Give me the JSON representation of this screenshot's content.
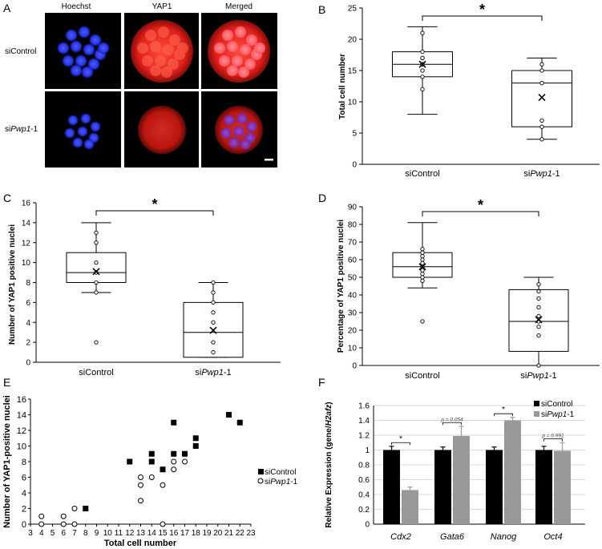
{
  "panel_letters": {
    "a": "A",
    "b": "B",
    "c": "C",
    "d": "D",
    "e": "E",
    "f": "F"
  },
  "panel_a": {
    "columns": [
      "Hoechst",
      "YAP1",
      "Merged"
    ],
    "rows": [
      {
        "pre": "siControl",
        "it": "",
        "post": ""
      },
      {
        "pre": "si",
        "it": "Pwp1",
        "post": "-1"
      }
    ],
    "scale_bar": "scale bar"
  },
  "colors": {
    "nucleus": "#2233ff",
    "yap": "#e0201a",
    "black": "#000000",
    "gray": "#999999"
  },
  "chart_data": [
    {
      "panel": "B",
      "type": "box",
      "ylabel": "Total cell number",
      "ylim": [
        0,
        25
      ],
      "yticks": [
        0,
        5,
        10,
        15,
        20,
        25
      ],
      "groups": [
        {
          "pre": "siControl",
          "it": "",
          "post": "",
          "min": 8,
          "q1": 14,
          "median": 16,
          "q3": 18,
          "max": 22,
          "mean": 16,
          "points": [
            21,
            18,
            17,
            17,
            16,
            16,
            15,
            14,
            12
          ]
        },
        {
          "pre": "si",
          "it": "Pwp1",
          "post": "-1",
          "min": 4,
          "q1": 6,
          "median": 13,
          "q3": 15,
          "max": 17,
          "mean": 10.7,
          "points": [
            16,
            15,
            13,
            7,
            6,
            4
          ]
        }
      ],
      "significance": "*"
    },
    {
      "panel": "C",
      "type": "box",
      "ylabel": "Number of YAP1 positive nuclei",
      "ylim": [
        0,
        16
      ],
      "yticks": [
        0,
        2,
        4,
        6,
        8,
        10,
        12,
        14,
        16
      ],
      "groups": [
        {
          "pre": "siControl",
          "it": "",
          "post": "",
          "min": 7,
          "q1": 8,
          "median": 9,
          "q3": 11,
          "max": 14,
          "mean": 9.1,
          "points": [
            13,
            12,
            10,
            9,
            8,
            7,
            2
          ]
        },
        {
          "pre": "si",
          "it": "Pwp1",
          "post": "-1",
          "min": 0.5,
          "q1": 0.5,
          "median": 3,
          "q3": 6,
          "max": 8,
          "mean": 3.2,
          "points": [
            8,
            7,
            6,
            5,
            4,
            2,
            1
          ]
        }
      ],
      "significance": "*"
    },
    {
      "panel": "D",
      "type": "box",
      "ylabel": "Percentage of YAP1 positive nuclei",
      "ylim": [
        0,
        90
      ],
      "yticks": [
        0,
        10,
        20,
        30,
        40,
        50,
        60,
        70,
        80,
        90
      ],
      "groups": [
        {
          "pre": "siControl",
          "it": "",
          "post": "",
          "min": 44,
          "q1": 50,
          "median": 56,
          "q3": 64,
          "max": 81,
          "mean": 56,
          "points": [
            66,
            64,
            62,
            60,
            58,
            56,
            54,
            52,
            50,
            48,
            25
          ]
        },
        {
          "pre": "si",
          "it": "Pwp1",
          "post": "-1",
          "min": 0,
          "q1": 8,
          "median": 25,
          "q3": 43,
          "max": 50,
          "mean": 26,
          "points": [
            46,
            42,
            38,
            33,
            28,
            25,
            22,
            17,
            0
          ]
        }
      ],
      "significance": "*"
    },
    {
      "panel": "E",
      "type": "scatter",
      "xlabel": "Total cell number",
      "ylabel": "Number of YAP1-positive nuclei",
      "xlim": [
        3,
        23
      ],
      "ylim": [
        0,
        16
      ],
      "xticks": [
        3,
        4,
        5,
        6,
        7,
        8,
        9,
        10,
        11,
        12,
        13,
        14,
        15,
        16,
        17,
        18,
        19,
        20,
        21,
        22,
        23
      ],
      "yticks": [
        0,
        2,
        4,
        6,
        8,
        10,
        12,
        14,
        16
      ],
      "series": [
        {
          "name": "siControl",
          "pre": "siControl",
          "it": "",
          "post": "",
          "marker": "filled-square",
          "points": [
            [
              8,
              2
            ],
            [
              12,
              8
            ],
            [
              14,
              8
            ],
            [
              14,
              9
            ],
            [
              15,
              7
            ],
            [
              16,
              9
            ],
            [
              16,
              13
            ],
            [
              17,
              9
            ],
            [
              18,
              10
            ],
            [
              18,
              11
            ],
            [
              21,
              14
            ],
            [
              22,
              13
            ]
          ]
        },
        {
          "name": "siPwp1-1",
          "pre": "si",
          "it": "Pwp1",
          "post": "-1",
          "marker": "open-circle",
          "points": [
            [
              4,
              0
            ],
            [
              4,
              1
            ],
            [
              6,
              0
            ],
            [
              6,
              1
            ],
            [
              7,
              0
            ],
            [
              7,
              2
            ],
            [
              13,
              3
            ],
            [
              13,
              5
            ],
            [
              13,
              6
            ],
            [
              14,
              6
            ],
            [
              15,
              0
            ],
            [
              15,
              5
            ],
            [
              16,
              7
            ],
            [
              16,
              8
            ],
            [
              17,
              8
            ]
          ]
        }
      ]
    },
    {
      "panel": "F",
      "type": "bar",
      "ylabel_pre": "Relative Expression (gene/",
      "ylabel_it": "H2afz",
      "ylabel_post": ")",
      "ylim": [
        0,
        1.6
      ],
      "yticks": [
        "0",
        "0.2",
        "0.4",
        "0.6",
        "0.8",
        "1",
        "1.2",
        "1.4",
        "1.6"
      ],
      "categories": [
        "Cdx2",
        "Gata6",
        "Nanog",
        "Oct4"
      ],
      "series": [
        {
          "name": "siControl",
          "pre": "siControl",
          "it": "",
          "post": "",
          "color": "#000000",
          "values": [
            1.0,
            1.0,
            1.0,
            1.0
          ],
          "errors": [
            0.05,
            0.04,
            0.04,
            0.05
          ]
        },
        {
          "name": "siPwp1-1",
          "pre": "si",
          "it": "Pwp1",
          "post": "-1",
          "color": "#999999",
          "values": [
            0.46,
            1.19,
            1.4,
            0.99
          ],
          "errors": [
            0.04,
            0.13,
            0.04,
            0.11
          ]
        }
      ],
      "annotations": [
        "*",
        "p = 0.054",
        "*",
        "p = 0.991"
      ]
    }
  ]
}
